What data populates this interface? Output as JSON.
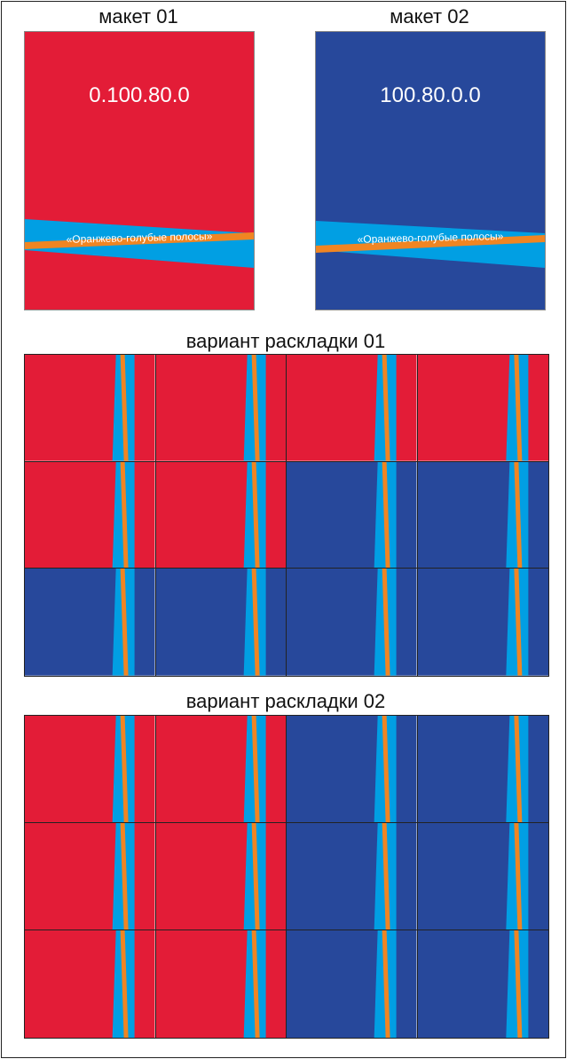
{
  "colors": {
    "red": "#e31c37",
    "blue": "#27489b",
    "cyan": "#019fe3",
    "orange": "#f08522"
  },
  "mockups": [
    {
      "title": "макет 01",
      "code": "0.100.80.0",
      "background": "red",
      "stripe_label": "«Оранжево-голубые полосы»"
    },
    {
      "title": "макет 02",
      "code": "100.80.0.0",
      "background": "blue",
      "stripe_label": "«Оранжево-голубые полосы»"
    }
  ],
  "layouts": [
    {
      "title": "вариант раскладки 01",
      "rows": [
        [
          "red",
          "red",
          "red",
          "red"
        ],
        [
          "red",
          "red",
          "blue",
          "blue"
        ],
        [
          "blue",
          "blue",
          "blue",
          "blue"
        ]
      ]
    },
    {
      "title": "вариант раскладки 02",
      "rows": [
        [
          "red",
          "red",
          "blue",
          "blue"
        ],
        [
          "red",
          "red",
          "blue",
          "blue"
        ],
        [
          "red",
          "red",
          "blue",
          "blue"
        ]
      ]
    }
  ]
}
